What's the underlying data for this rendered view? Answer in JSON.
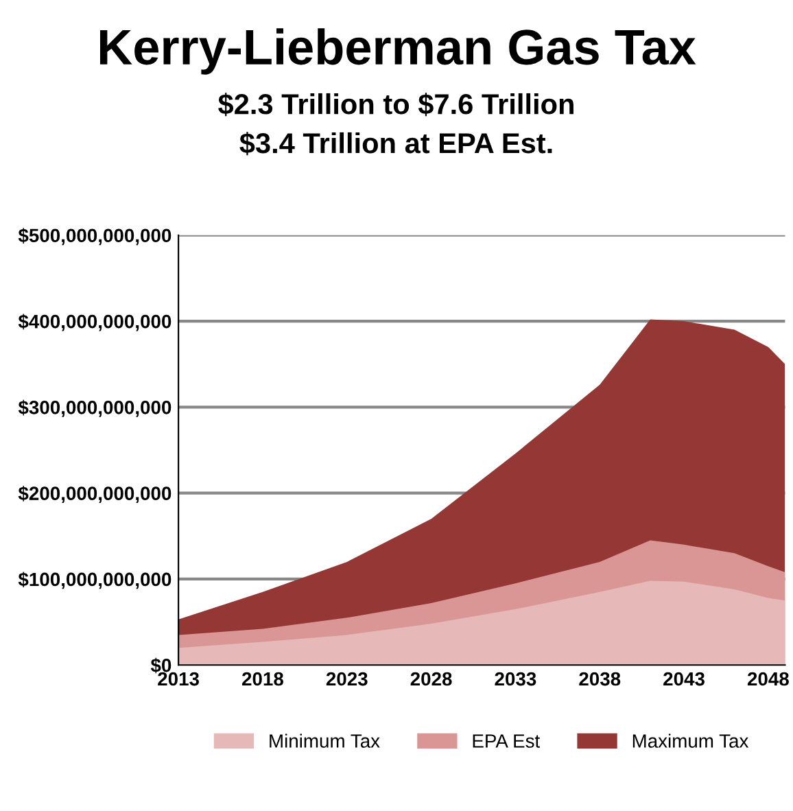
{
  "chart_data": {
    "type": "area",
    "title": "Kerry-Lieberman Gas Tax",
    "subtitle": "$2.3 Trillion to $7.6 Trillion\n$3.4 Trillion at EPA Est.",
    "x": [
      2013,
      2018,
      2023,
      2028,
      2033,
      2038,
      2041,
      2043,
      2046,
      2048,
      2049
    ],
    "series": [
      {
        "name": "Maximum Tax",
        "color": "#953735",
        "values": [
          53000000000,
          85000000000,
          120000000000,
          170000000000,
          246000000000,
          326000000000,
          402000000000,
          400000000000,
          390000000000,
          370000000000,
          350000000000
        ]
      },
      {
        "name": "EPA Est",
        "color": "#d99694",
        "values": [
          35000000000,
          42000000000,
          55000000000,
          72000000000,
          95000000000,
          120000000000,
          145000000000,
          140000000000,
          130000000000,
          115000000000,
          108000000000
        ]
      },
      {
        "name": "Minimum Tax",
        "color": "#e6b9b8",
        "values": [
          20000000000,
          27000000000,
          35000000000,
          48000000000,
          65000000000,
          85000000000,
          98000000000,
          97000000000,
          88000000000,
          78000000000,
          75000000000
        ]
      }
    ],
    "xlim": [
      2013,
      2049
    ],
    "xticks": [
      2013,
      2018,
      2023,
      2028,
      2033,
      2038,
      2043,
      2048
    ],
    "ylim": [
      0,
      500000000000
    ],
    "yticks": [
      {
        "value": 0,
        "label": "$0"
      },
      {
        "value": 100000000000,
        "label": "$100,000,000,000"
      },
      {
        "value": 200000000000,
        "label": "$200,000,000,000"
      },
      {
        "value": 300000000000,
        "label": "$300,000,000,000"
      },
      {
        "value": 400000000000,
        "label": "$400,000,000,000"
      },
      {
        "value": 500000000000,
        "label": "$500,000,000,000"
      }
    ],
    "grid": "y",
    "legend": "bottom"
  }
}
